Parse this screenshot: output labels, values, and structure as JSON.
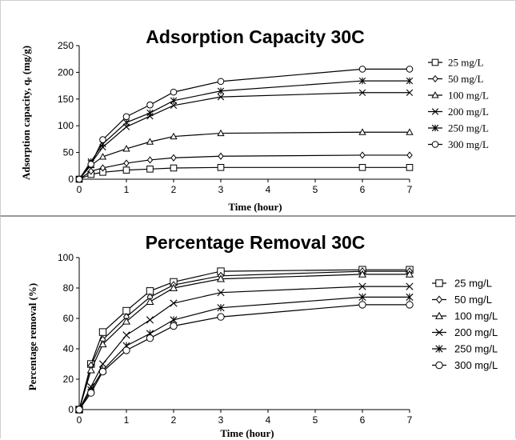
{
  "chart_data": [
    {
      "type": "line",
      "title": "Adsorption Capacity 30C",
      "xlabel": "Time (hour)",
      "ylabel": "Adsorption capacity, qₑ (mg/g)",
      "xlim": [
        0,
        7
      ],
      "ylim": [
        0,
        250
      ],
      "x_ticks": [
        "0",
        "1",
        "2",
        "3",
        "4",
        "5",
        "6",
        "7"
      ],
      "y_ticks": [
        "0",
        "50",
        "100",
        "150",
        "200",
        "250"
      ],
      "grid": false,
      "legend_position": "right",
      "x": [
        0,
        0.25,
        0.5,
        1,
        1.5,
        2,
        3,
        6,
        7
      ],
      "series": [
        {
          "name": "25 mg/L",
          "marker": "square",
          "values": [
            0,
            9,
            13,
            17,
            19,
            21,
            22,
            22,
            22
          ]
        },
        {
          "name": "50 mg/L",
          "marker": "diamond",
          "values": [
            0,
            15,
            21,
            30,
            36,
            40,
            43,
            45,
            45
          ]
        },
        {
          "name": "100 mg/L",
          "marker": "triangle",
          "values": [
            0,
            26,
            42,
            57,
            70,
            80,
            86,
            88,
            88
          ]
        },
        {
          "name": "200 mg/L",
          "marker": "x",
          "values": [
            0,
            30,
            60,
            98,
            118,
            138,
            154,
            162,
            162
          ]
        },
        {
          "name": "250 mg/L",
          "marker": "star",
          "values": [
            0,
            33,
            66,
            106,
            124,
            147,
            165,
            184,
            184
          ]
        },
        {
          "name": "300 mg/L",
          "marker": "circle",
          "values": [
            0,
            28,
            74,
            117,
            139,
            163,
            183,
            206,
            206
          ]
        }
      ]
    },
    {
      "type": "line",
      "title": "Percentage Removal 30C",
      "xlabel": "Time (hour)",
      "ylabel": "Percentage removal (%)",
      "xlim": [
        0,
        7
      ],
      "ylim": [
        0,
        100
      ],
      "x_ticks": [
        "0",
        "1",
        "2",
        "3",
        "4",
        "5",
        "6",
        "7"
      ],
      "y_ticks": [
        "0",
        "20",
        "40",
        "60",
        "80",
        "100"
      ],
      "grid": false,
      "legend_position": "right",
      "x": [
        0,
        0.25,
        0.5,
        1,
        1.5,
        2,
        3,
        6,
        7
      ],
      "series": [
        {
          "name": "25 mg/L",
          "marker": "square",
          "values": [
            0,
            30,
            51,
            65,
            78,
            84,
            91,
            92,
            92
          ]
        },
        {
          "name": "50 mg/L",
          "marker": "diamond",
          "values": [
            0,
            29,
            46,
            61,
            74,
            82,
            88,
            91,
            91
          ]
        },
        {
          "name": "100 mg/L",
          "marker": "triangle",
          "values": [
            0,
            26,
            43,
            58,
            71,
            80,
            86,
            89,
            89
          ]
        },
        {
          "name": "200 mg/L",
          "marker": "x",
          "values": [
            0,
            15,
            30,
            49,
            59,
            70,
            77,
            81,
            81
          ]
        },
        {
          "name": "250 mg/L",
          "marker": "star",
          "values": [
            0,
            13,
            26,
            42,
            50,
            59,
            67,
            74,
            74
          ]
        },
        {
          "name": "300 mg/L",
          "marker": "circle",
          "values": [
            0,
            11,
            25,
            39,
            47,
            55,
            61,
            69,
            69
          ]
        }
      ]
    }
  ]
}
